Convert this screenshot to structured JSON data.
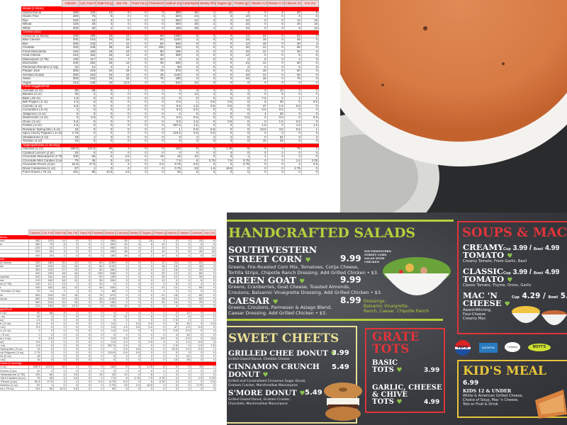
{
  "sheet": {
    "columns": [
      "Calories",
      "Cal. From Fat",
      "Total Fat (g)",
      "Sat. Fat",
      "Trans Fat (g)",
      "Cholesterol (mg)",
      "Sodium (mg)",
      "Carbohydrates (g)",
      "Dietary Fibers (g)",
      "Sugars (g)",
      "Protein (g)",
      "Vitamin A (%)",
      "Vitamin C (%)",
      "Calcium (%)",
      "Iron (%)"
    ],
    "sections": [
      {
        "title": "Bread (2 slices)",
        "rows": [
          [
            "Glazed Donut",
            "280",
            "120",
            "14",
            "6",
            "0",
            "0",
            "380",
            "36",
            "1",
            "16",
            "4",
            "0",
            "4",
            "20",
            "8"
          ],
          [
            "Gluten Free",
            "280",
            "70",
            "8",
            "0",
            "0",
            "0",
            "520",
            "44",
            "4",
            "6",
            "10",
            "0",
            "0",
            "6",
            "6"
          ],
          [
            "Rye",
            "220",
            "10",
            "2",
            "0",
            "0",
            "0",
            "560",
            "44",
            "4",
            "2",
            "10",
            "0",
            "0",
            "12",
            "16"
          ],
          [
            "Wheat",
            "220",
            "20",
            "3",
            "0",
            "0",
            "0",
            "400",
            "38",
            "2",
            "6",
            "10",
            "0",
            "8",
            "40",
            "16"
          ],
          [
            "White",
            "200",
            "20",
            "2",
            "0",
            "0",
            "0",
            "180",
            "38",
            "4",
            "2",
            "10",
            "0",
            "0",
            "8",
            "16"
          ]
        ]
      },
      {
        "title": "Cheese (3oz)",
        "rows": [
          [
            "American (4 slices)",
            "230",
            "180",
            "20",
            "12",
            "0",
            "60",
            "1280",
            "8",
            "0",
            "0",
            "12",
            "24",
            "0",
            "52",
            "0"
          ],
          [
            "Blue Cheese",
            "300",
            "216",
            "24",
            "15",
            "0",
            "84",
            "1140",
            "3",
            "0",
            "0",
            "18",
            "18",
            "0",
            "45",
            "0"
          ],
          [
            "Brie",
            "300",
            "243",
            "27",
            "12",
            "0",
            "60",
            "560",
            "0",
            "0",
            "0",
            "12",
            "18",
            "0",
            "30",
            "3"
          ],
          [
            "Cheddar",
            "320",
            "249",
            "28",
            "16",
            "0",
            "105",
            "546",
            "0",
            "0",
            "0",
            "20",
            "12",
            "0",
            "65",
            "0"
          ],
          [
            "Fresh Mozzarella",
            "240",
            "162",
            "18",
            "12",
            "0",
            "90",
            "195",
            "3",
            "0",
            "0",
            "15",
            "12",
            "0",
            "30",
            "6"
          ],
          [
            "Goat Cheese",
            "210",
            "162",
            "18",
            "12",
            "0",
            "30",
            "300",
            "3",
            "0",
            "0",
            "12",
            "0",
            "0",
            "6",
            "0"
          ],
          [
            "Mascarpone (2 TB)",
            "130",
            "117",
            "13",
            "7",
            "0",
            "20",
            "0",
            "0",
            "0",
            "0",
            "2",
            "8",
            "0",
            "4",
            "0"
          ],
          [
            "Mozzarella",
            "240",
            "162",
            "18",
            "12",
            "0",
            "45",
            "630",
            "3",
            "0",
            "0",
            "21",
            "12",
            "0",
            "60",
            "0"
          ],
          [
            "Parmesan Romano (1 tsp)",
            "22",
            "14",
            "2",
            "1",
            "0",
            "3",
            "68",
            "0",
            "0",
            "0",
            "2",
            "0",
            "0",
            "6",
            "0"
          ],
          [
            "Pepper Jack",
            "300",
            "216",
            "24",
            "15",
            "0",
            "75",
            "570",
            "0",
            "0",
            "0",
            "21",
            "18",
            "0",
            "60",
            "0"
          ],
          [
            "Smoked Gouda",
            "300",
            "216",
            "24",
            "15",
            "0",
            "45",
            "1140",
            "3",
            "0",
            "0",
            "18",
            "12",
            "0",
            "60",
            "0"
          ],
          [
            "Swiss",
            "300",
            "216",
            "24",
            "15",
            "0",
            "75",
            "180",
            "0",
            "0",
            "0",
            "24",
            "18",
            "0",
            "75",
            "0"
          ],
          [
            "Vegan",
            "210",
            "135",
            "15",
            "13.5",
            "0",
            "0",
            "510",
            "15",
            "0",
            "0",
            "0",
            "0",
            "0",
            "0",
            "0"
          ]
        ]
      },
      {
        "title": "Fresh Veggies/Fruit",
        "rows": [
          [
            "Avocado (2 oz)",
            "90",
            "68",
            "8",
            "1",
            "0",
            "0",
            "4",
            "4",
            "4",
            "0",
            "1",
            "2",
            "10",
            "0",
            "2"
          ],
          [
            "Banana (2 oz)",
            "50",
            "2",
            "0",
            "0",
            "0",
            "0",
            "0",
            "12",
            "2",
            "6",
            "0",
            "0",
            "8",
            "0",
            "0"
          ],
          [
            "Basil (.25 oz)",
            "1.5",
            "0",
            "0",
            "0",
            "0",
            "0",
            "0",
            "0",
            "0",
            "0",
            "0",
            "7.5",
            "2",
            "1",
            "1"
          ],
          [
            "Bell Pepper (.5 oz)",
            "4.5",
            "0",
            "0",
            "0",
            "0",
            "0",
            "0.5",
            "1",
            "0.5",
            "0.5",
            "0",
            "8",
            "30",
            "0",
            "0.5"
          ],
          [
            "Carrots (.5 oz)",
            "5.5",
            "0",
            "0",
            "0",
            "0",
            "0",
            "9.5",
            "1.5",
            "0.5",
            "0.5",
            "0",
            "47",
            "1.5",
            "0.5",
            "0"
          ],
          [
            "Cucumbers (.5 oz)",
            "2",
            "0",
            "0",
            "0",
            "0",
            "0",
            "0.5",
            "0.5",
            "0",
            "0",
            "0",
            "0.5",
            "0.5",
            "0",
            "0"
          ],
          [
            "Jalapenos (.5 oz)",
            "0",
            "0",
            "0",
            "0",
            "0",
            "0",
            "0",
            "0",
            "0",
            "0",
            "0",
            "4",
            "30",
            "0",
            "0"
          ],
          [
            "Mushrooms (.5 oz)",
            "3",
            "0.5",
            "0",
            "0",
            "0",
            "0",
            "0.5",
            "0.5",
            "0",
            "0",
            "0.5",
            "0",
            "0.5",
            "0",
            "0.5"
          ],
          [
            "Onion (.5 oz)",
            "5.5",
            "0",
            "0",
            "0",
            "0",
            "0",
            "0.5",
            "1.5",
            "0",
            "0.5",
            "0",
            "0",
            "1.5",
            "0.5",
            "0"
          ],
          [
            "Pickles (.5 oz)",
            "4.5",
            "0",
            "0",
            "0",
            "0",
            "0",
            "367.5",
            "1.5",
            "0",
            "0",
            "0",
            "1.5",
            "0",
            "1.5",
            "1.5"
          ],
          [
            "Romaine/ Spring Mix (.5 oz)",
            "15",
            "0",
            "0",
            "0",
            "0",
            "0",
            "1",
            "0.5",
            "0.5",
            "0",
            "0",
            "24.5",
            "3.5",
            "0.5",
            "1"
          ],
          [
            "Spicy Cherry Peppers (.5 oz)",
            "2.75",
            "0",
            "0",
            "0",
            "0",
            "0",
            "219.5",
            "0.5",
            "0.5",
            "0",
            "0",
            "0",
            "0",
            "0",
            "0"
          ],
          [
            "Strawberries (2 oz)",
            "18",
            "1",
            "0",
            "0",
            "0",
            "0",
            "0",
            "4",
            "2",
            "2",
            "0",
            "0",
            "54",
            "0",
            "2"
          ],
          [
            "Tomato (.5 oz)",
            "15",
            "0",
            "0",
            "0",
            "0",
            "0",
            "0",
            "3",
            "0",
            "3",
            "0",
            "15",
            "28",
            "0",
            "0"
          ]
        ]
      },
      {
        "title": "Toppings/Extras (1 serving)",
        "rows": [
          [
            "Almonds (1 oz)",
            "169.5",
            "124.5",
            "90",
            "1",
            "0",
            "0",
            "160",
            "6",
            "3",
            "1.25",
            "6",
            "0",
            "0",
            "76",
            "1"
          ],
          [
            "Candied Lemons (2 pc)",
            "20",
            "0",
            "0",
            "0",
            "0",
            "0",
            "0",
            "0",
            "0",
            "5",
            "0",
            "0",
            "2",
            "0",
            "0"
          ],
          [
            "Chocolate Mascarpone (2 TB)",
            "100",
            "66",
            "6",
            "3.5",
            "0",
            "15",
            "15",
            "10",
            "0",
            "8",
            "1",
            "4",
            "0",
            "2",
            "0"
          ],
          [
            "Chocolate Mint Candies (3 pc)",
            "75",
            "45",
            "5",
            "4.5",
            "0",
            "0",
            "7.5",
            "8",
            "0.75",
            "7.5",
            "0.75",
            "0",
            "0",
            "1.5",
            "2.25"
          ],
          [
            "Chocolate Pieces (3 pc)",
            "52.5",
            "27.5",
            "3",
            "2",
            "0",
            "2.5",
            "8.75",
            "6.5",
            "0",
            "6",
            "0.75",
            "0",
            "0",
            "2",
            "0.5"
          ],
          [
            "Dried Cranberries (1 oz)",
            "87",
            "1",
            "0",
            "0",
            "0",
            "0",
            "0.75",
            "23",
            "1.5",
            "18.5",
            "0",
            "0",
            "0",
            "2.75",
            "0"
          ],
          [
            "Fried Onions (.75 oz)",
            "101",
            "90",
            "10.5",
            "4.5",
            "0",
            "0",
            "90",
            "8",
            "0",
            "0",
            "0",
            "0",
            "0",
            "0",
            "0"
          ]
        ]
      }
    ]
  },
  "menu": {
    "salads": {
      "title": "HANDCRAFTED SALADS",
      "items": [
        {
          "name1": "SOUTHWESTERN",
          "name2": "STREET CORN",
          "price": "9.99",
          "desc1": "Greens, Fire-Roasted Corn Mix, Tomatoes, Cotija Cheese,",
          "desc2": "Tortilla Strips, Chipotle Ranch Dressing. Add Grilled Chicken • $3."
        },
        {
          "name1": "GREEN GOAT",
          "price": "9.99",
          "desc1": "Greens, Cranberries, Goat Cheese, Toasted Almonds,",
          "desc2": "Croutons, Balsamic Vinaigrette Dressing. Add Grilled Chicken • $3."
        },
        {
          "name1": "CAESAR",
          "price": "8.99",
          "desc1": "Greens, Croutons, Parmesan & Asiago Blend,",
          "desc2": "Caesar Dressing. Add Grilled Chicken • $3."
        }
      ],
      "photo_caption": [
        "SOUTHWESTERN",
        "STREET CORN",
        "SALAD WITH",
        "CHICKEN"
      ],
      "dressings": [
        "Dressings:",
        "Balsamic Vinaigrette,",
        "Ranch, Caesar, Chipotle Ranch"
      ]
    },
    "soups": {
      "title": "SOUPS & MAC",
      "items": [
        {
          "name1": "CREAMY",
          "name2": "TOMATO",
          "cup_label": "Cup",
          "cup": "3.99",
          "bowl_label": "Bowl",
          "bowl": "4.99",
          "desc": [
            "Creamy Tomato, Fresh Garlic, Basil"
          ]
        },
        {
          "name1": "CLASSIC",
          "name2": "TOMATO",
          "cup_label": "Cup",
          "cup": "3.99",
          "bowl_label": "Bowl",
          "bowl": "4.99",
          "desc": [
            "Classic Tomato, Thyme, Onion, Garlic"
          ]
        },
        {
          "name1": "MAC 'N",
          "name2": "CHEESE",
          "cup_label": "Cup",
          "cup": "4.29",
          "bowl_label": "Bowl",
          "bowl": "5.29",
          "desc": [
            "Award-Winning,",
            "Four-Cheese",
            "Creamy Mac"
          ]
        }
      ]
    },
    "sweet": {
      "title": "SWEET CHEETS",
      "items": [
        {
          "name1": "GRILLED CHEE DONUT",
          "price": "3.99",
          "desc": [
            "Grilled Glazed Donut, Cheddar Cheese"
          ]
        },
        {
          "name1": "CINNAMON CRUNCH",
          "name2": "DONUT",
          "price": "5.49",
          "desc": [
            "Grilled and Caramelized Cinnamon Sugar Donut,",
            "Graham Cracker, Marshmallow Mascarpone"
          ]
        },
        {
          "name1": "S'MORE DONUT",
          "price": "5.49",
          "desc": [
            "Grilled Glazed Donut, Graham Cracker,",
            "Chocolate, Marshmallow Mascarpone"
          ]
        }
      ]
    },
    "tots": {
      "title1": "GRATE",
      "title2": "TOTS",
      "items": [
        {
          "lines": [
            "BASIC",
            "TOTS"
          ],
          "price": "3.99"
        },
        {
          "lines": [
            "GARLIC, CHEESE",
            "& CHIVE",
            "TOTS"
          ],
          "price": "4.99"
        }
      ]
    },
    "brands": [
      "PEPSI",
      "AQUAFINA",
      "Hubbard",
      "MOTT'S"
    ],
    "kids": {
      "title": "KID'S MEAL",
      "price": "6.99",
      "subtitle": "KIDS 12 & UNDER",
      "desc": [
        "White & American Grilled Cheese,",
        "Choice of Soup, Mac 'n Cheese,",
        "Tots or Fruit & Drink"
      ]
    },
    "colors": {
      "salad_green": "#b7cf3d",
      "soup_red": "#e0343a",
      "sweet_cream": "#eadf96",
      "kids_yellow": "#e8c53a",
      "board": "#3b3d42"
    }
  }
}
